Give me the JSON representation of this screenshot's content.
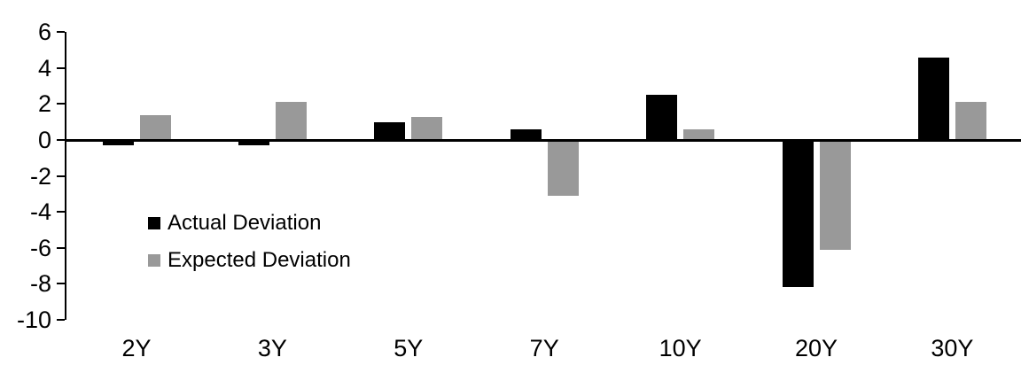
{
  "chart_data": {
    "type": "bar",
    "title": "",
    "categories": [
      "2Y",
      "3Y",
      "5Y",
      "7Y",
      "10Y",
      "20Y",
      "30Y"
    ],
    "series": [
      {
        "name": "Actual Deviation",
        "color": "#000000",
        "values": [
          -0.3,
          -0.3,
          1.0,
          0.6,
          2.5,
          -8.2,
          4.6
        ]
      },
      {
        "name": "Expected Deviation",
        "color": "#999999",
        "values": [
          1.4,
          2.1,
          1.3,
          -3.1,
          0.6,
          -6.1,
          2.1
        ]
      }
    ],
    "xlabel": "",
    "ylabel": "",
    "ylim": [
      -10,
      6
    ],
    "yticks": [
      6,
      4,
      2,
      0,
      -2,
      -4,
      -6,
      -8,
      -10
    ],
    "grid": false,
    "legend_position": "inside-left",
    "axis_color": "#000000",
    "background": "#ffffff"
  }
}
